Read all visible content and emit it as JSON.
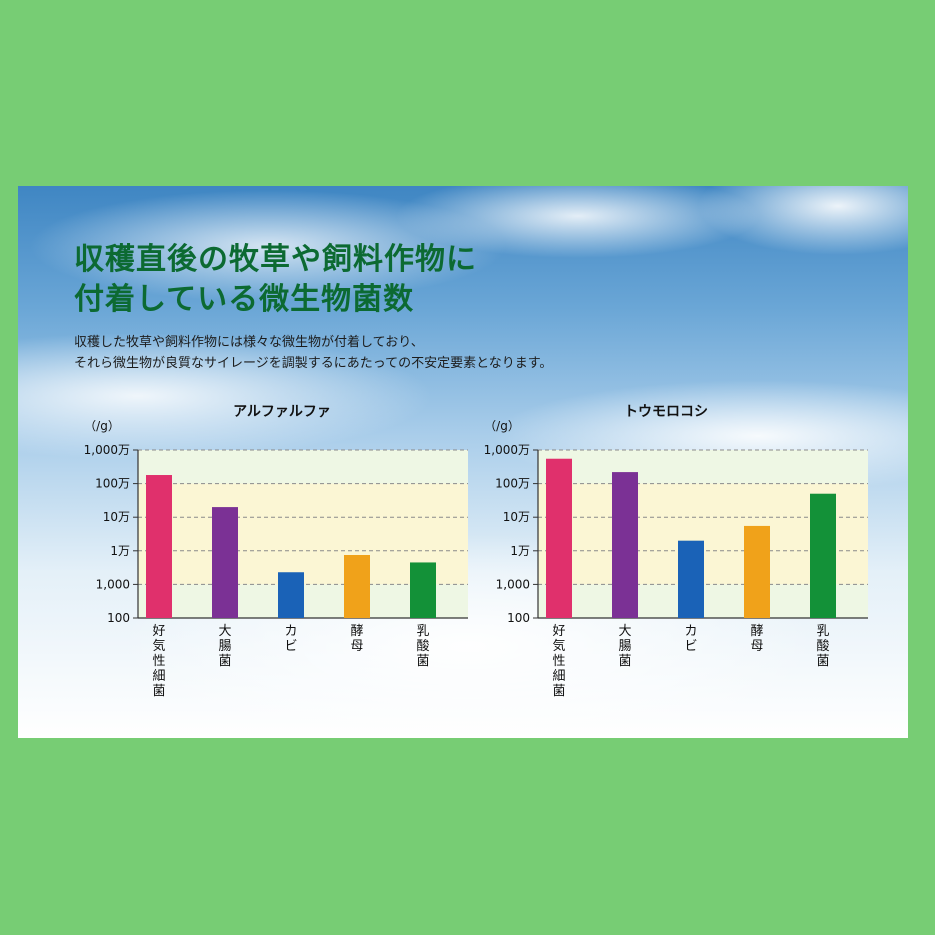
{
  "title_lines": [
    "収穫直後の牧草や飼料作物に",
    "付着している微生物菌数"
  ],
  "description_lines": [
    "収穫した牧草や飼料作物には様々な微生物が付着しており、",
    "それら微生物が良質なサイレージを調製するにあたっての不安定要素となります。"
  ],
  "colors": {
    "title": "#0c6a32",
    "plot_band_light": "#eef7e4",
    "plot_band_yellow": "#fbf6d4",
    "bars": [
      "#e0306c",
      "#7b3195",
      "#1a62b7",
      "#f0a21a",
      "#139138"
    ]
  },
  "chart_data": [
    {
      "type": "bar",
      "title": "アルファルファ",
      "unit_label": "（/g）",
      "scale": "log10",
      "ylim": [
        100,
        10000000
      ],
      "y_ticks": [
        100,
        1000,
        10000,
        100000,
        1000000,
        10000000
      ],
      "y_tick_labels": [
        "100",
        "1,000",
        "1万",
        "10万",
        "100万",
        "1,000万"
      ],
      "grid": "dashed",
      "categories": [
        "好気性細菌",
        "大腸菌",
        "カビ",
        "酵母",
        "乳酸菌"
      ],
      "values": [
        1800000,
        200000,
        2300,
        7500,
        4500
      ]
    },
    {
      "type": "bar",
      "title": "トウモロコシ",
      "unit_label": "（/g）",
      "scale": "log10",
      "ylim": [
        100,
        10000000
      ],
      "y_ticks": [
        100,
        1000,
        10000,
        100000,
        1000000,
        10000000
      ],
      "y_tick_labels": [
        "100",
        "1,000",
        "1万",
        "10万",
        "100万",
        "1,000万"
      ],
      "grid": "dashed",
      "categories": [
        "好気性細菌",
        "大腸菌",
        "カビ",
        "酵母",
        "乳酸菌"
      ],
      "values": [
        5500000,
        2200000,
        20000,
        55000,
        500000
      ]
    }
  ]
}
